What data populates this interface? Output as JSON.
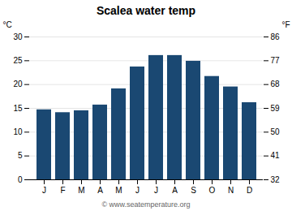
{
  "chart_data": {
    "type": "bar",
    "title": "Scalea water temp",
    "categories": [
      "J",
      "F",
      "M",
      "A",
      "M",
      "J",
      "J",
      "A",
      "S",
      "O",
      "N",
      "D"
    ],
    "values": [
      14.7,
      14.1,
      14.5,
      15.7,
      19.1,
      23.7,
      26.1,
      26.1,
      24.9,
      21.7,
      19.5,
      16.2
    ],
    "color": "#1a4872",
    "ylabel": "°C",
    "ylim": [
      0,
      30
    ],
    "yticks": [
      0,
      5,
      10,
      15,
      20,
      25,
      30
    ],
    "y2label": "°F",
    "y2lim": [
      32,
      86
    ],
    "y2ticks": [
      32,
      41,
      50,
      59,
      68,
      77,
      86
    ],
    "grid": true,
    "annotations": [
      "© www.seatemperature.org"
    ]
  }
}
